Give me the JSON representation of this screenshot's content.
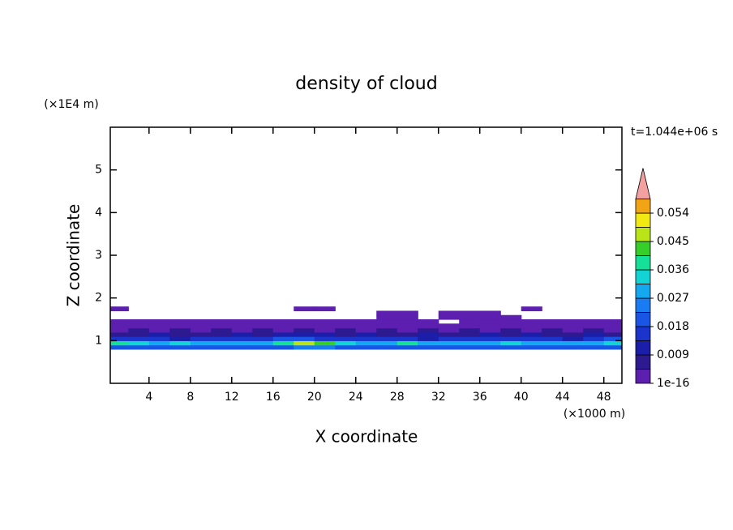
{
  "chart_data": {
    "type": "contour",
    "title": "density of cloud",
    "x_label": "X coordinate",
    "x_unit": "(×1000 m)",
    "y_label": "Z coordinate",
    "y_unit": "(×1E4 m)",
    "annotation": "t=1.044e+06 s",
    "xlim": [
      0.25,
      49.75
    ],
    "ylim": [
      0,
      6
    ],
    "xticks": [
      4,
      8,
      12,
      16,
      20,
      24,
      28,
      32,
      36,
      40,
      44,
      48
    ],
    "yticks": [
      1,
      2,
      3,
      4,
      5
    ],
    "field": {
      "x": [
        1,
        3,
        5,
        7,
        9,
        11,
        13,
        15,
        17,
        19,
        21,
        23,
        25,
        27,
        29,
        31,
        33,
        35,
        37,
        39,
        41,
        43,
        45,
        47,
        49
      ],
      "z": [
        0.85,
        0.95,
        1.05,
        1.15,
        1.25,
        1.35,
        1.45,
        1.55,
        1.65,
        1.75
      ],
      "values": [
        [
          0.02,
          0.022,
          0.02,
          0.018,
          0.02,
          0.019,
          0.021,
          0.02,
          0.022,
          0.025,
          0.024,
          0.02,
          0.019,
          0.02,
          0.018,
          0.02,
          0.022,
          0.02,
          0.019,
          0.02,
          0.021,
          0.02,
          0.019,
          0.022,
          0.02
        ],
        [
          0.038,
          0.032,
          0.03,
          0.034,
          0.03,
          0.031,
          0.028,
          0.03,
          0.036,
          0.045,
          0.042,
          0.033,
          0.03,
          0.029,
          0.036,
          0.031,
          0.03,
          0.028,
          0.03,
          0.032,
          0.029,
          0.03,
          0.028,
          0.031,
          0.034
        ],
        [
          0.014,
          0.016,
          0.015,
          0.013,
          0.017,
          0.014,
          0.015,
          0.016,
          0.018,
          0.02,
          0.017,
          0.015,
          0.014,
          0.016,
          0.015,
          0.013,
          0.014,
          0.015,
          0.016,
          0.014,
          0.015,
          0.016,
          0.013,
          0.017,
          0.018
        ],
        [
          0.008,
          0.007,
          0.009,
          0.008,
          0.007,
          0.008,
          0.009,
          0.008,
          0.009,
          0.01,
          0.009,
          0.008,
          0.01,
          0.007,
          0.008,
          0.009,
          0.008,
          0.007,
          0.009,
          0.008,
          0.009,
          0.007,
          0.008,
          0.009,
          0.008
        ],
        [
          0.004,
          0.005,
          0.004,
          0.005,
          0.004,
          0.005,
          0.004,
          0.005,
          0.004,
          0.005,
          0.004,
          0.005,
          0.004,
          0.005,
          0.004,
          0.005,
          0.004,
          0.005,
          0.004,
          0.005,
          0.004,
          0.005,
          0.004,
          0.005,
          0.004
        ],
        [
          0.002,
          0.003,
          0.002,
          0.003,
          0.002,
          0.003,
          0.002,
          0.003,
          0.002,
          0.003,
          0.002,
          0.003,
          0.002,
          0.003,
          0.002,
          0.003,
          0.002,
          0.003,
          0.002,
          0.003,
          0.002,
          0.003,
          0.002,
          0.003,
          0.002
        ],
        [
          0.001,
          0.001,
          0.001,
          0.001,
          0.002,
          0.001,
          0.001,
          0.001,
          0.001,
          0.001,
          0.001,
          0.001,
          0.002,
          0.001,
          0.001,
          0.001,
          null,
          0.001,
          0.001,
          0.001,
          0.001,
          0.001,
          0.001,
          0.001,
          0.001
        ],
        [
          null,
          null,
          null,
          null,
          null,
          null,
          null,
          null,
          null,
          null,
          null,
          null,
          null,
          0.001,
          0.001,
          null,
          0.001,
          0.001,
          0.001,
          0.001,
          null,
          null,
          null,
          null,
          null
        ],
        [
          null,
          null,
          null,
          null,
          null,
          null,
          null,
          null,
          null,
          null,
          null,
          null,
          null,
          0.001,
          0.001,
          null,
          0.001,
          0.001,
          0.001,
          null,
          null,
          null,
          null,
          null,
          null
        ],
        [
          0.001,
          null,
          null,
          null,
          null,
          null,
          null,
          null,
          null,
          0.001,
          0.001,
          null,
          null,
          null,
          null,
          null,
          null,
          null,
          null,
          null,
          0.001,
          null,
          null,
          null,
          null
        ]
      ]
    },
    "colorbar": {
      "levels": [
        1e-16,
        0.0045,
        0.009,
        0.0135,
        0.018,
        0.0225,
        0.027,
        0.0315,
        0.036,
        0.0405,
        0.045,
        0.0495,
        0.054,
        0.0585
      ],
      "colors": [
        "#5c1fb0",
        "#2e1a90",
        "#1a1ea8",
        "#1a34cc",
        "#1a56e6",
        "#1a7cf2",
        "#14a8f0",
        "#12d4d4",
        "#14e098",
        "#36cf2a",
        "#b8e418",
        "#f2e812",
        "#f2a414"
      ],
      "extend_color": "#f2a0a0",
      "ticks": [
        {
          "value": 1e-16,
          "label": "1e-16"
        },
        0.009,
        0.018,
        0.027,
        0.036,
        0.045,
        0.054
      ]
    }
  }
}
